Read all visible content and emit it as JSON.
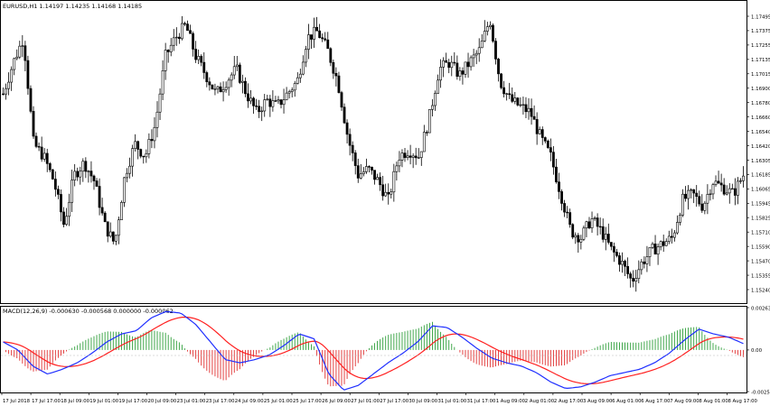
{
  "main_panel": {
    "header": "EURUSD,H1  1.14197 1.14235 1.14168 1.14185",
    "price_ticks": [
      "1.17495",
      "1.17375",
      "1.17255",
      "1.17135",
      "1.17015",
      "1.16900",
      "1.16780",
      "1.16660",
      "1.16540",
      "1.16420",
      "1.16305",
      "1.16185",
      "1.16065",
      "1.15945",
      "1.15825",
      "1.15710",
      "1.15590",
      "1.15470",
      "1.15355",
      "1.15240"
    ]
  },
  "macd_panel": {
    "header": "MACD(12,26,9) -0.000630 -0.000568 0.000000 -0.000062",
    "value_ticks": [
      "0.002636",
      "0.00",
      "-0.00259"
    ]
  },
  "time_axis": {
    "labels": [
      "17 Jul 2018",
      "17 Jul 17:00",
      "18 Jul 09:00",
      "19 Jul 01:00",
      "19 Jul 17:00",
      "20 Jul 09:00",
      "23 Jul 01:00",
      "23 Jul 17:00",
      "24 Jul 09:00",
      "25 Jul 01:00",
      "25 Jul 17:00",
      "26 Jul 09:00",
      "27 Jul 01:00",
      "27 Jul 17:00",
      "30 Jul 09:00",
      "31 Jul 01:00",
      "31 Jul 17:00",
      "1 Aug 09:00",
      "2 Aug 01:00",
      "2 Aug 17:00",
      "3 Aug 09:00",
      "6 Aug 01:00",
      "6 Aug 17:00",
      "7 Aug 09:00",
      "8 Aug 01:00",
      "8 Aug 17:00"
    ]
  },
  "colors": {
    "candle": "#000000",
    "histogram_positive": "#2e9e3a",
    "histogram_negative": "#e03030",
    "macd_line": "#1f2fff",
    "signal_line": "#ff2020",
    "axis": "#000000"
  },
  "chart_data": {
    "type": "candlestick",
    "symbol": "EURUSD",
    "timeframe": "H1",
    "ylim": [
      1.1524,
      1.1755
    ],
    "close_path": [
      1.169,
      1.1715,
      1.1735,
      1.165,
      1.164,
      1.162,
      1.1585,
      1.1625,
      1.1635,
      1.162,
      1.1585,
      1.157,
      1.1625,
      1.165,
      1.164,
      1.1665,
      1.172,
      1.1735,
      1.1745,
      1.172,
      1.1705,
      1.169,
      1.17,
      1.171,
      1.169,
      1.1675,
      1.1685,
      1.168,
      1.169,
      1.17,
      1.1735,
      1.174,
      1.1725,
      1.17,
      1.1655,
      1.1625,
      1.163,
      1.162,
      1.1605,
      1.164,
      1.1645,
      1.164,
      1.167,
      1.171,
      1.1715,
      1.1705,
      1.1715,
      1.1725,
      1.175,
      1.17,
      1.1685,
      1.168,
      1.1675,
      1.1655,
      1.164,
      1.161,
      1.158,
      1.1575,
      1.159,
      1.158,
      1.1565,
      1.1555,
      1.154,
      1.1555,
      1.1565,
      1.157,
      1.1575,
      1.1605,
      1.161,
      1.16,
      1.162,
      1.1615,
      1.161,
      1.1625
    ],
    "macd": {
      "range": [
        -0.00259,
        0.002636
      ],
      "macd_path": [
        0.0005,
        0.0,
        -0.001,
        -0.0015,
        -0.0012,
        -0.0008,
        -0.0002,
        0.0005,
        0.001,
        0.0012,
        0.002,
        0.0024,
        0.0023,
        0.0016,
        0.0005,
        -0.0006,
        -0.0008,
        -0.0006,
        -0.0003,
        0.0003,
        0.001,
        0.0007,
        -0.0015,
        -0.0025,
        -0.0022,
        -0.0015,
        -0.0008,
        -0.0002,
        0.0005,
        0.0015,
        0.0014,
        0.0008,
        0.0001,
        -0.0005,
        -0.0008,
        -0.001,
        -0.0014,
        -0.002,
        -0.0024,
        -0.0023,
        -0.002,
        -0.0016,
        -0.0014,
        -0.0012,
        -0.0008,
        -0.0002,
        0.0006,
        0.0013,
        0.001,
        0.0008,
        0.0004
      ]
    }
  }
}
